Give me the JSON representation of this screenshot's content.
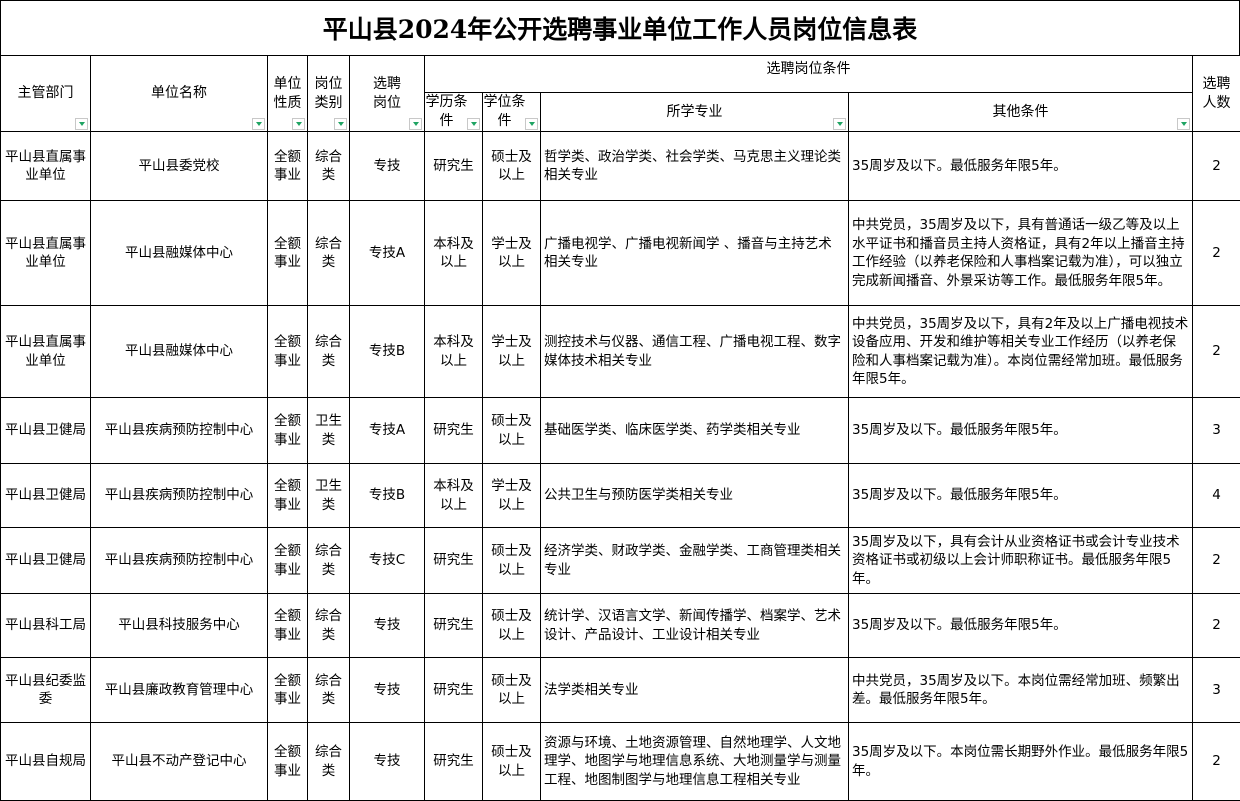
{
  "title": "平山县2024年公开选聘事业单位工作人员岗位信息表",
  "headers": {
    "dept": "主管部门",
    "unit": "单位名称",
    "nature": "单位性质",
    "category": "岗位类别",
    "post": "选聘岗位",
    "conditions": "选聘岗位条件",
    "edu": "学历条件",
    "degree": "学位条件",
    "major": "所学专业",
    "other": "其他条件",
    "count": "选聘人数"
  },
  "filter_icon": "dropdown-filter-icon",
  "filter_color": "#1fa463",
  "rows": [
    {
      "dept": "平山县直属事业单位",
      "unit": "平山县委党校",
      "nature": "全额事业",
      "category": "综合类",
      "post": "专技",
      "edu": "研究生",
      "degree": "硕士及以上",
      "major": "哲学类、政治学类、社会学类、马克思主义理论类相关专业",
      "other": "35周岁及以下。最低服务年限5年。",
      "count": "2"
    },
    {
      "dept": "平山县直属事业单位",
      "unit": "平山县融媒体中心",
      "nature": "全额事业",
      "category": "综合类",
      "post": "专技A",
      "edu": "本科及以上",
      "degree": "学士及以上",
      "major": "广播电视学、广播电视新闻学 、播音与主持艺术相关专业",
      "other": "中共党员，35周岁及以下，具有普通话一级乙等及以上水平证书和播音员主持人资格证，具有2年以上播音主持工作经验（以养老保险和人事档案记载为准），可以独立完成新闻播音、外景采访等工作。最低服务年限5年。",
      "count": "2"
    },
    {
      "dept": "平山县直属事业单位",
      "unit": "平山县融媒体中心",
      "nature": "全额事业",
      "category": "综合类",
      "post": "专技B",
      "edu": "本科及以上",
      "degree": "学士及以上",
      "major": "测控技术与仪器、通信工程、广播电视工程、数字媒体技术相关专业",
      "other": "中共党员，35周岁及以下，具有2年及以上广播电视技术设备应用、开发和维护等相关专业工作经历（以养老保险和人事档案记载为准）。本岗位需经常加班。最低服务年限5年。",
      "count": "2"
    },
    {
      "dept": "平山县卫健局",
      "unit": "平山县疾病预防控制中心",
      "nature": "全额事业",
      "category": "卫生类",
      "post": "专技A",
      "edu": "研究生",
      "degree": "硕士及以上",
      "major": "基础医学类、临床医学类、药学类相关专业",
      "other": "35周岁及以下。最低服务年限5年。",
      "count": "3"
    },
    {
      "dept": "平山县卫健局",
      "unit": "平山县疾病预防控制中心",
      "nature": "全额事业",
      "category": "卫生类",
      "post": "专技B",
      "edu": "本科及以上",
      "degree": "学士及以上",
      "major": "公共卫生与预防医学类相关专业",
      "other": "35周岁及以下。最低服务年限5年。",
      "count": "4"
    },
    {
      "dept": "平山县卫健局",
      "unit": "平山县疾病预防控制中心",
      "nature": "全额事业",
      "category": "综合类",
      "post": "专技C",
      "edu": "研究生",
      "degree": "硕士及以上",
      "major": "经济学类、财政学类、金融学类、工商管理类相关专业",
      "other": "35周岁及以下，具有会计从业资格证书或会计专业技术资格证书或初级以上会计师职称证书。最低服务年限5年。",
      "count": "2"
    },
    {
      "dept": "平山县科工局",
      "unit": "平山县科技服务中心",
      "nature": "全额事业",
      "category": "综合类",
      "post": "专技",
      "edu": "研究生",
      "degree": "硕士及以上",
      "major": "统计学、汉语言文学、新闻传播学、档案学、艺术设计、产品设计、工业设计相关专业",
      "other": "35周岁及以下。最低服务年限5年。",
      "count": "2"
    },
    {
      "dept": "平山县纪委监委",
      "unit": "平山县廉政教育管理中心",
      "nature": "全额事业",
      "category": "综合类",
      "post": "专技",
      "edu": "研究生",
      "degree": "硕士及以上",
      "major": "法学类相关专业",
      "other": "中共党员，35周岁及以下。本岗位需经常加班、频繁出差。最低服务年限5年。",
      "count": "3"
    },
    {
      "dept": "平山县自规局",
      "unit": "平山县不动产登记中心",
      "nature": "全额事业",
      "category": "综合类",
      "post": "专技",
      "edu": "研究生",
      "degree": "硕士及以上",
      "major": "资源与环境、土地资源管理、自然地理学、人文地理学、地图学与地理信息系统、大地测量学与测量工程、地图制图学与地理信息工程相关专业",
      "other": "35周岁及以下。本岗位需长期野外作业。最低服务年限5年。",
      "count": "2"
    }
  ]
}
